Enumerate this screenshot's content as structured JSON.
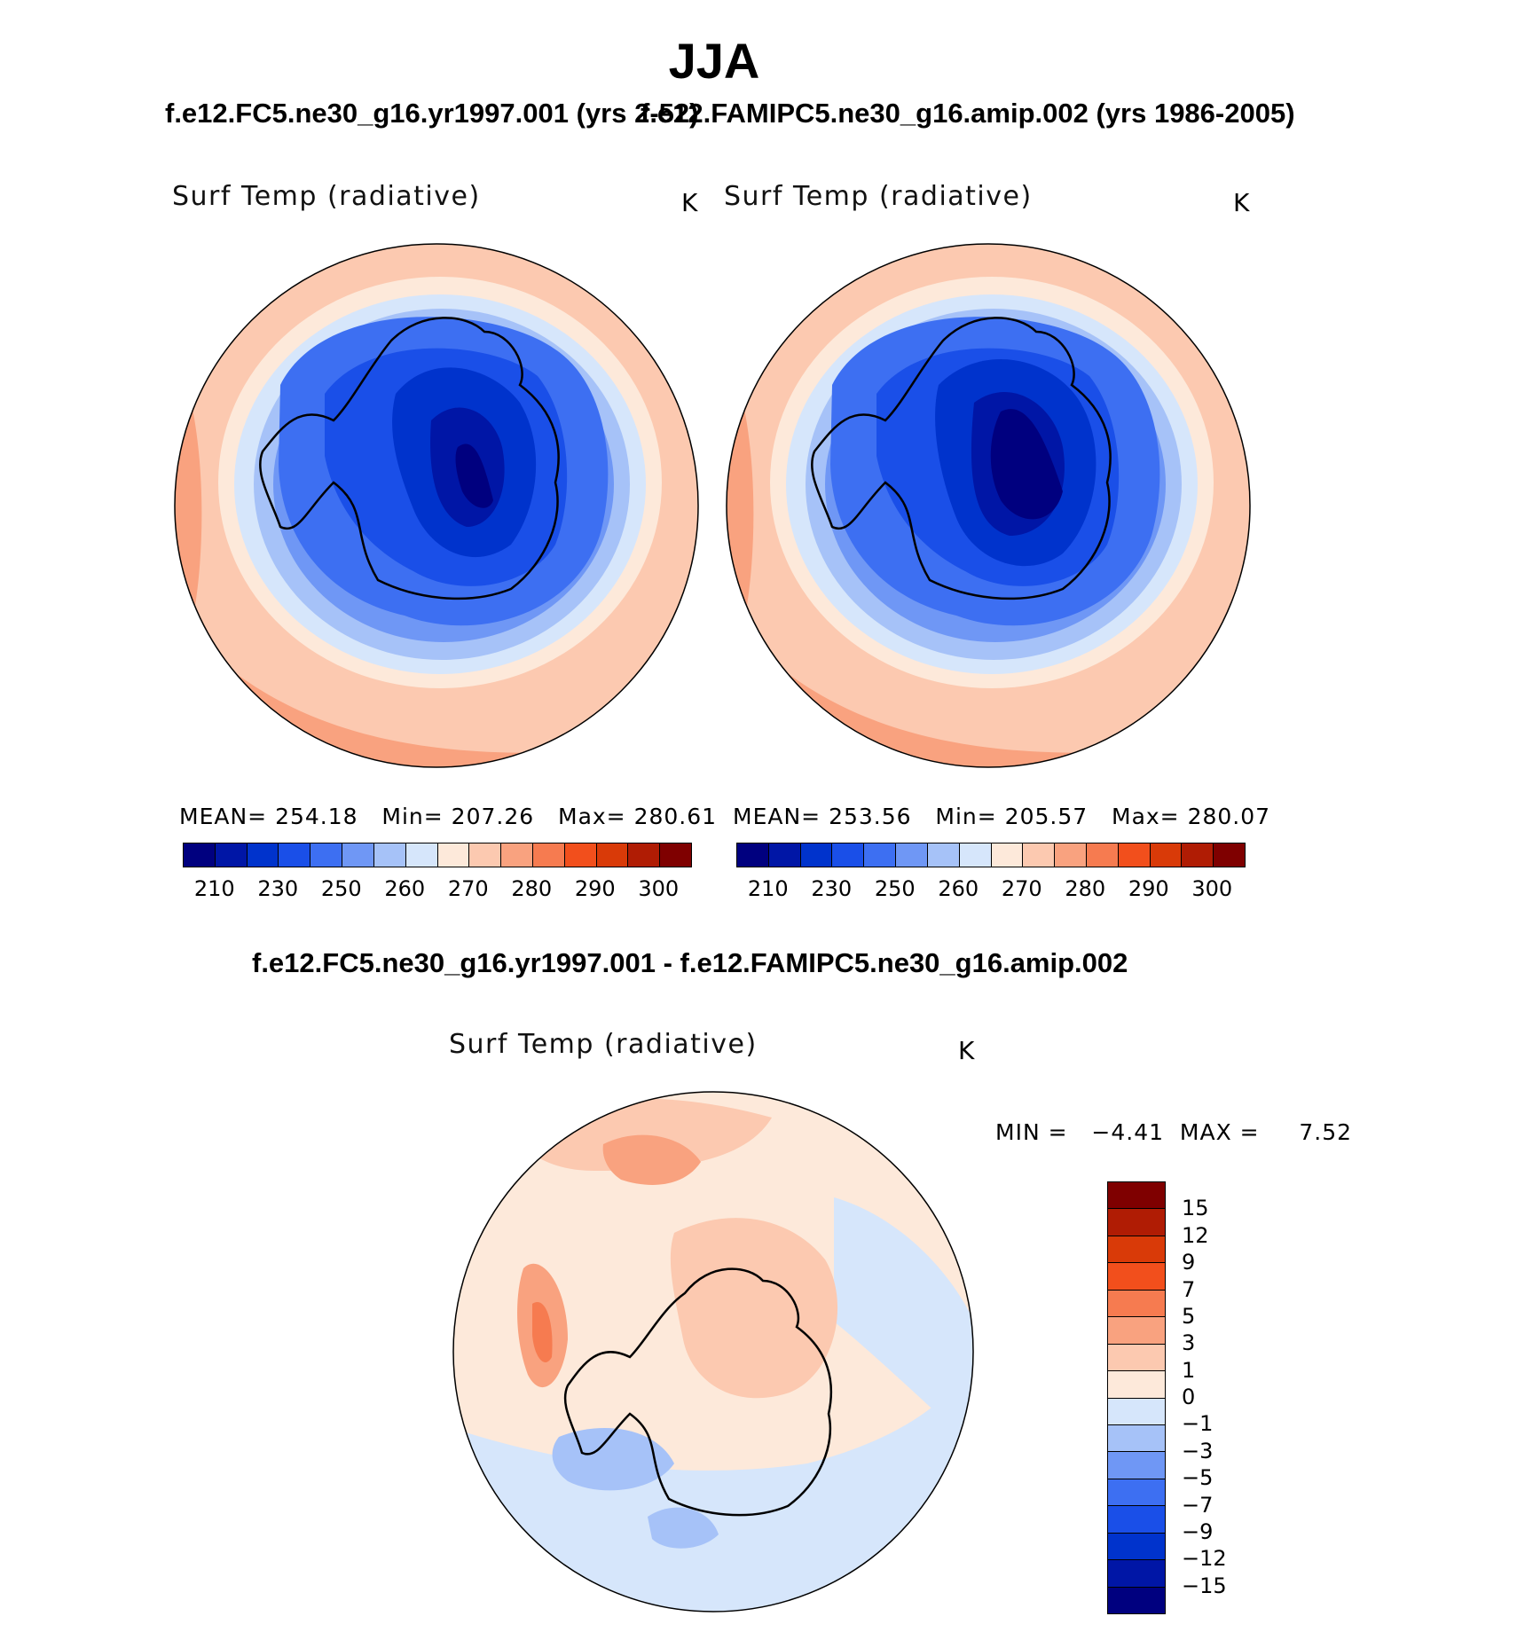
{
  "season": "JJA",
  "panels": [
    {
      "id": "test",
      "title": "f.e12.FC5.ne30_g16.yr1997.001 (yrs 2-52)",
      "variable": "Surf Temp (radiative)",
      "units": "K",
      "stats": {
        "mean_label": "MEAN=",
        "mean": "254.18",
        "min_label": "Min=",
        "min": "207.26",
        "max_label": "Max=",
        "max": "280.61"
      }
    },
    {
      "id": "control",
      "title": "f.e12.FAMIPC5.ne30_g16.amip.002 (yrs 1986-2005)",
      "variable": "Surf Temp (radiative)",
      "units": "K",
      "stats": {
        "mean_label": "MEAN=",
        "mean": "253.56",
        "min_label": "Min=",
        "min": "205.57",
        "max_label": "Max=",
        "max": "280.07"
      }
    }
  ],
  "diff_panel": {
    "title": "f.e12.FC5.ne30_g16.yr1997.001 - f.e12.FAMIPC5.ne30_g16.amip.002",
    "variable": "Surf Temp (radiative)",
    "units": "K",
    "min_label": "MIN =",
    "min": "−4.41",
    "max_label": "MAX =",
    "max": "7.52"
  },
  "chart_data": [
    {
      "type": "heatmap",
      "projection": "south polar stereographic",
      "title": "f.e12.FC5.ne30_g16.yr1997.001 (yrs 2-52)",
      "variable": "Surf Temp (radiative)",
      "units": "K",
      "mean": 254.18,
      "min": 207.26,
      "max": 280.61,
      "contour_levels": [
        210,
        220,
        230,
        240,
        250,
        255,
        260,
        265,
        270,
        275,
        280,
        285,
        290,
        295,
        300
      ],
      "colorbar_tick_labels": [
        "210",
        "230",
        "250",
        "260",
        "270",
        "280",
        "290",
        "300"
      ],
      "colors": [
        "#00007f",
        "#0016a6",
        "#0033cc",
        "#1a4fe8",
        "#3d6ff2",
        "#6f97f5",
        "#a6c2f8",
        "#d6e6fb",
        "#fde9da",
        "#fcc9b0",
        "#f9a27f",
        "#f67b50",
        "#f24f1c",
        "#d93a08",
        "#b01c04",
        "#7f0000"
      ]
    },
    {
      "type": "heatmap",
      "projection": "south polar stereographic",
      "title": "f.e12.FAMIPC5.ne30_g16.amip.002 (yrs 1986-2005)",
      "variable": "Surf Temp (radiative)",
      "units": "K",
      "mean": 253.56,
      "min": 205.57,
      "max": 280.07,
      "contour_levels": [
        210,
        220,
        230,
        240,
        250,
        255,
        260,
        265,
        270,
        275,
        280,
        285,
        290,
        295,
        300
      ],
      "colorbar_tick_labels": [
        "210",
        "230",
        "250",
        "260",
        "270",
        "280",
        "290",
        "300"
      ],
      "colors": [
        "#00007f",
        "#0016a6",
        "#0033cc",
        "#1a4fe8",
        "#3d6ff2",
        "#6f97f5",
        "#a6c2f8",
        "#d6e6fb",
        "#fde9da",
        "#fcc9b0",
        "#f9a27f",
        "#f67b50",
        "#f24f1c",
        "#d93a08",
        "#b01c04",
        "#7f0000"
      ]
    },
    {
      "type": "heatmap",
      "projection": "south polar stereographic",
      "title": "f.e12.FC5.ne30_g16.yr1997.001 - f.e12.FAMIPC5.ne30_g16.amip.002",
      "variable": "Surf Temp (radiative)",
      "units": "K",
      "min": -4.41,
      "max": 7.52,
      "contour_levels": [
        15,
        12,
        9,
        7,
        5,
        3,
        1,
        0,
        -1,
        -3,
        -5,
        -7,
        -9,
        -12,
        -15
      ],
      "colorbar_tick_labels": [
        "15",
        "12",
        "9",
        "7",
        "5",
        "3",
        "1",
        "0",
        "−1",
        "−3",
        "−5",
        "−7",
        "−9",
        "−12",
        "−15"
      ],
      "colors": [
        "#7f0000",
        "#b01c04",
        "#d93a08",
        "#f24f1c",
        "#f67b50",
        "#f9a27f",
        "#fcc9b0",
        "#fde9da",
        "#d6e6fb",
        "#a6c2f8",
        "#6f97f5",
        "#3d6ff2",
        "#1a4fe8",
        "#0033cc",
        "#0016a6",
        "#00007f"
      ]
    }
  ]
}
